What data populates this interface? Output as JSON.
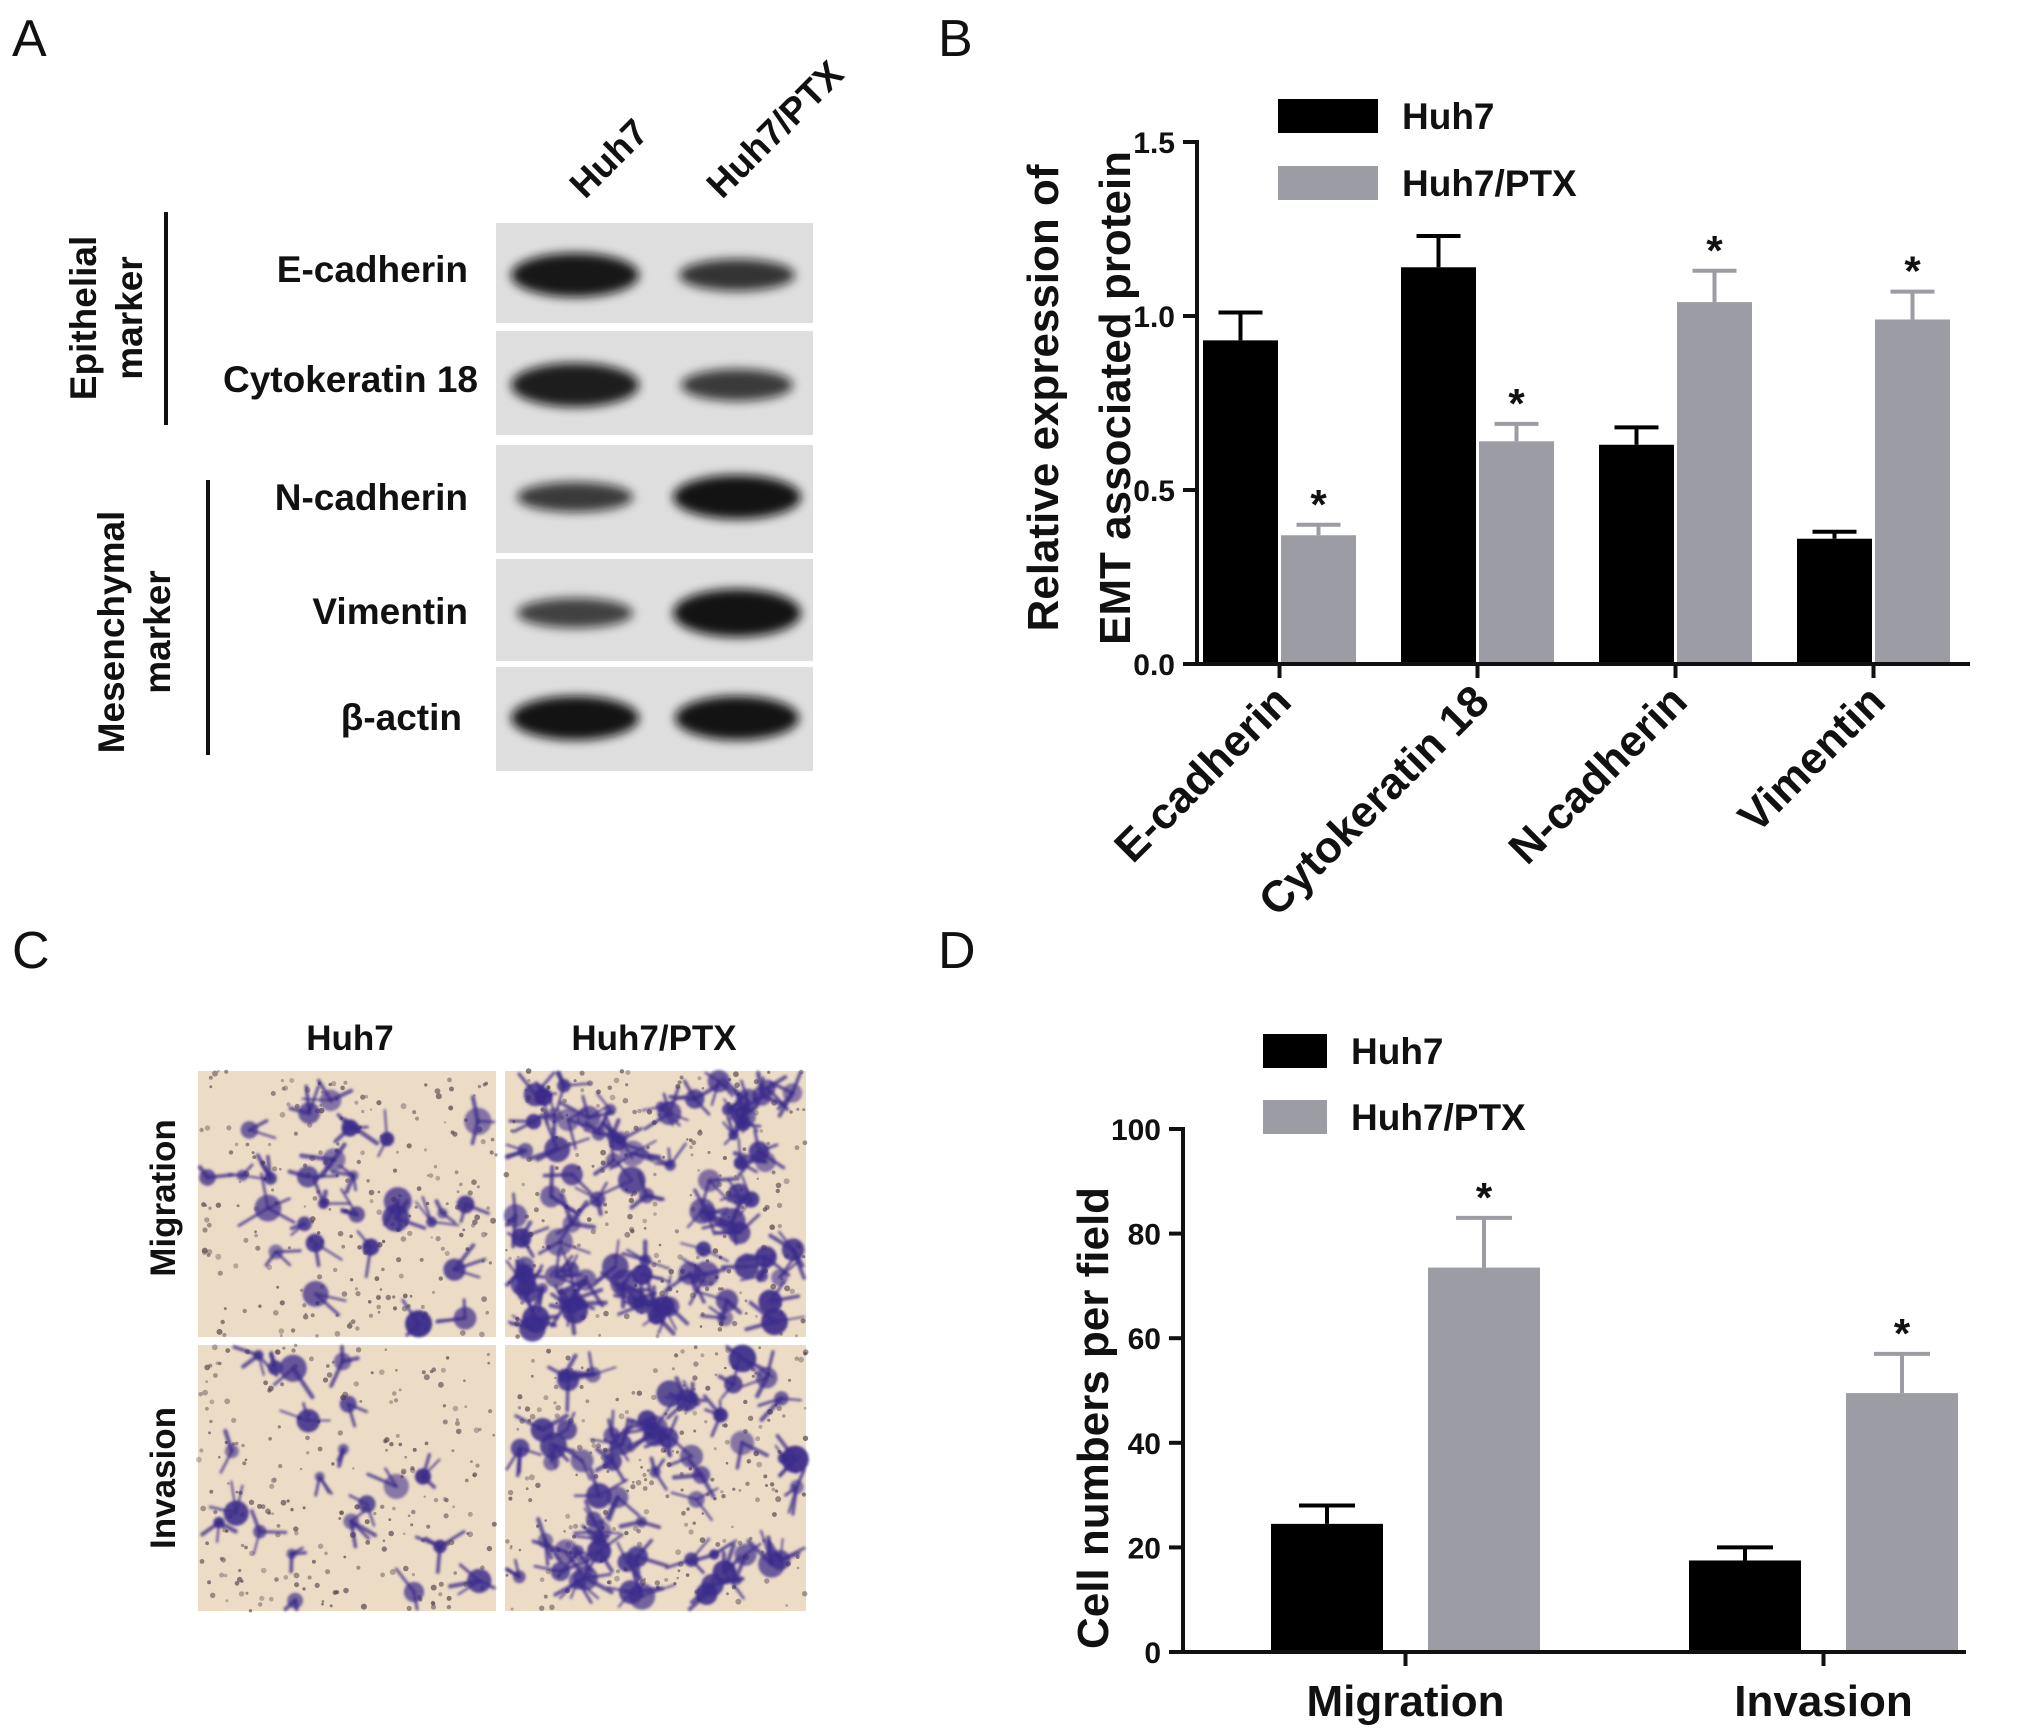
{
  "panels": {
    "A": {
      "letter": "A",
      "lanes": [
        "Huh7",
        "Huh7/PTX"
      ],
      "groups": [
        {
          "label_lines": [
            "Epithelial",
            "marker"
          ]
        },
        {
          "label_lines": [
            "Mesenchymal",
            "marker"
          ]
        }
      ],
      "blots": [
        {
          "label": "E-cadherin",
          "intensity": [
            0.9,
            0.65
          ]
        },
        {
          "label": "Cytokeratin 18",
          "intensity": [
            0.85,
            0.6
          ]
        },
        {
          "label": "N-cadherin",
          "intensity": [
            0.6,
            0.95
          ]
        },
        {
          "label": "Vimentin",
          "intensity": [
            0.55,
            0.95
          ]
        },
        {
          "label": "β-actin",
          "intensity": [
            0.95,
            0.95
          ]
        }
      ]
    },
    "B": {
      "letter": "B"
    },
    "C": {
      "letter": "C",
      "columns": [
        "Huh7",
        "Huh7/PTX"
      ],
      "rows": [
        "Migration",
        "Invasion"
      ]
    },
    "D": {
      "letter": "D"
    }
  },
  "colors": {
    "Huh7": "#000000",
    "Huh7_PTX": "#9c9ca4",
    "stain": "#3a2a8a",
    "membrane": "#ecdcc6"
  },
  "chart_data": [
    {
      "type": "bar",
      "panel": "B",
      "categories": [
        "E-cadherin",
        "Cytokeratin 18",
        "N-cadherin",
        "Vimentin"
      ],
      "series": [
        {
          "name": "Huh7",
          "values": [
            0.93,
            1.14,
            0.63,
            0.36
          ],
          "errors": [
            0.08,
            0.09,
            0.05,
            0.02
          ],
          "significant": [
            false,
            false,
            false,
            false
          ]
        },
        {
          "name": "Huh7/PTX",
          "values": [
            0.37,
            0.64,
            1.04,
            0.99
          ],
          "errors": [
            0.03,
            0.05,
            0.09,
            0.08
          ],
          "significant": [
            true,
            true,
            true,
            true
          ]
        }
      ],
      "significance_marker": "*",
      "ylabel_lines": [
        "Relative expression of",
        "EMT associated protein"
      ],
      "xlabel": "",
      "ylim": [
        0,
        1.5
      ],
      "yticks": [
        "0.0",
        "0.5",
        "1.0",
        "1.5"
      ],
      "legend_position": "top-left",
      "grid": false
    },
    {
      "type": "bar",
      "panel": "D",
      "categories": [
        "Migration",
        "Invasion"
      ],
      "series": [
        {
          "name": "Huh7",
          "values": [
            24.5,
            17.5
          ],
          "errors": [
            3.5,
            2.5
          ],
          "significant": [
            false,
            false
          ]
        },
        {
          "name": "Huh7/PTX",
          "values": [
            73.5,
            49.5
          ],
          "errors": [
            9.5,
            7.5
          ],
          "significant": [
            true,
            true
          ]
        }
      ],
      "significance_marker": "*",
      "ylabel_lines": [
        "Cell numbers per field"
      ],
      "xlabel": "",
      "ylim": [
        0,
        100
      ],
      "yticks": [
        "0",
        "20",
        "40",
        "60",
        "80",
        "100"
      ],
      "legend_position": "top-left",
      "grid": false
    }
  ]
}
